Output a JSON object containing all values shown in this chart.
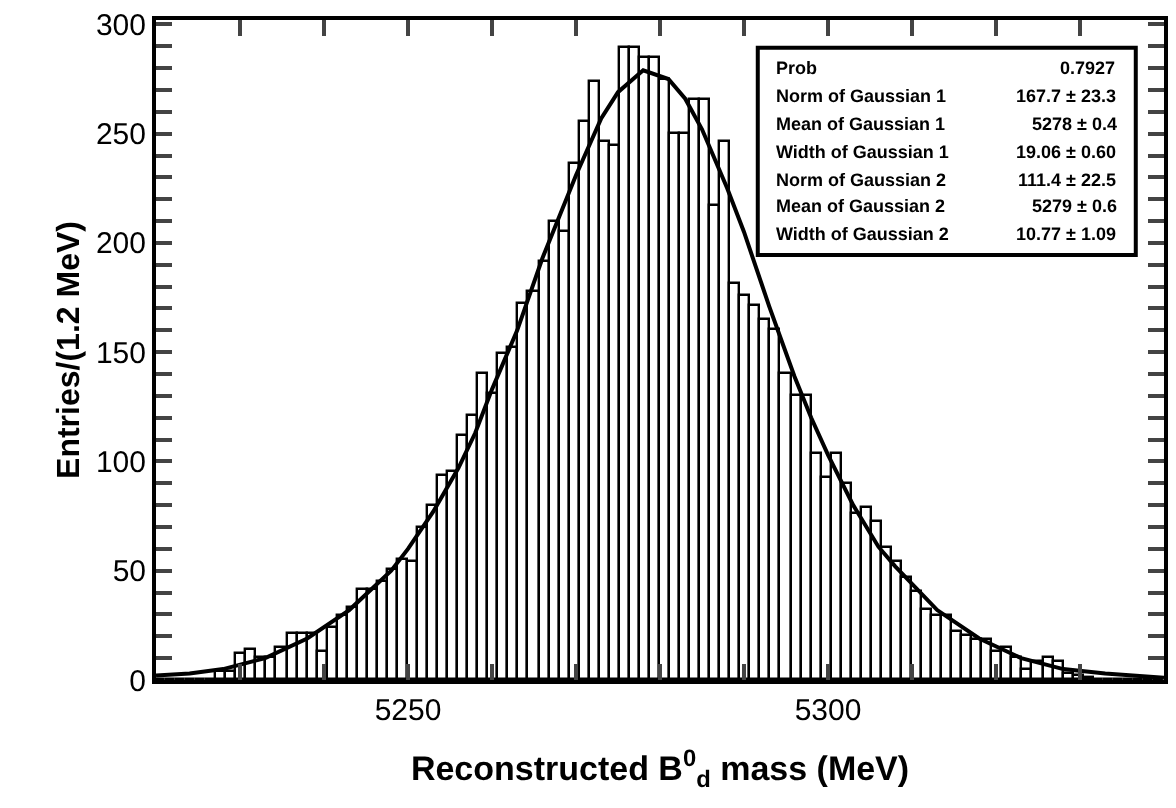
{
  "chart_data": {
    "type": "histogram",
    "xlabel": "Reconstructed B$^{0}$$_{d}$ mass (MeV)",
    "ylabel": "Entries/(1.2 MeV)",
    "bins": [
      5220,
      5221.2,
      5222.4,
      5223.6,
      5224.8,
      5226,
      5227.2,
      5228.4,
      5229.6,
      5230.8,
      5232,
      5233.2,
      5234.4,
      5235.6,
      5236.8,
      5238,
      5239.2,
      5240.4,
      5241.6,
      5242.8,
      5244,
      5245.2,
      5246.4,
      5247.6,
      5248.8,
      5250,
      5251.2,
      5252.4,
      5253.6,
      5254.8,
      5256,
      5257.2,
      5258.4,
      5259.6,
      5260.8,
      5262,
      5263.2,
      5264.4,
      5265.6,
      5266.8,
      5268,
      5269.2,
      5270.4,
      5271.6,
      5272.8,
      5274,
      5275.2,
      5276.4,
      5277.6,
      5278.8,
      5280,
      5281.2,
      5282.4,
      5283.6,
      5284.8,
      5286,
      5287.2,
      5288.4,
      5289.6,
      5290.8,
      5292,
      5293.2,
      5294.4,
      5295.6,
      5296.8,
      5298,
      5299.2,
      5300.4,
      5301.6,
      5302.8,
      5304,
      5305.2,
      5306.4,
      5307.6,
      5308.8,
      5310,
      5311.2,
      5312.4,
      5313.6,
      5314.8,
      5316,
      5317.2,
      5318.4,
      5319.6,
      5320.8,
      5322,
      5323.2,
      5324.4,
      5325.6,
      5326.8,
      5328,
      5329.2,
      5330.4,
      5331.6,
      5332.8,
      5334,
      5335.2,
      5336.4,
      5337.6,
      5338.8,
      5340
    ],
    "values": [
      0,
      0,
      0,
      0,
      0,
      0,
      4,
      4,
      12,
      14,
      10,
      10,
      15,
      21,
      21,
      21,
      13,
      24,
      29,
      33,
      41,
      41,
      45,
      50,
      55,
      54,
      70,
      80,
      93,
      95,
      112,
      121,
      140,
      131,
      149,
      152,
      172,
      178,
      191,
      210,
      205,
      236,
      255,
      274,
      246,
      244,
      289,
      289,
      285,
      285,
      275,
      250,
      250,
      265,
      265,
      217,
      246,
      181,
      176,
      171,
      165,
      160,
      140,
      130,
      130,
      103,
      92,
      103,
      90,
      76,
      79,
      72,
      60,
      54,
      47,
      40,
      32,
      29,
      29,
      22,
      20,
      18,
      18,
      13,
      15,
      10,
      5,
      8,
      10,
      8,
      3,
      2,
      1,
      0,
      0,
      0,
      0,
      0,
      0,
      0
    ],
    "color": "#000000",
    "series": [
      {
        "type": "line",
        "color": "#000000",
        "x": [
          5220,
          5224,
          5228,
          5233,
          5238,
          5243,
          5248,
          5250,
          5253,
          5256,
          5258,
          5260,
          5263,
          5266,
          5268,
          5270,
          5273,
          5275,
          5278,
          5281,
          5283,
          5285,
          5288,
          5290,
          5293,
          5296,
          5298,
          5300,
          5303,
          5306,
          5308,
          5313,
          5318,
          5323,
          5328,
          5333,
          5340
        ],
        "values": [
          2,
          3,
          5,
          10,
          19,
          32,
          50,
          60,
          77,
          97,
          113,
          133,
          160,
          193,
          212,
          231,
          257,
          269,
          279,
          275,
          266,
          252,
          225,
          205,
          171,
          139,
          120,
          103,
          80,
          61,
          52,
          32,
          19,
          10,
          5,
          3,
          1
        ]
      }
    ],
    "xlim": [
      5220,
      5340
    ],
    "xticks": [
      {
        "value": 5230,
        "label": null
      },
      {
        "value": 5240,
        "label": null
      },
      5250,
      {
        "value": 5260,
        "label": null
      },
      {
        "value": 5270,
        "label": null
      },
      {
        "value": 5280,
        "label": null
      },
      {
        "value": 5290,
        "label": null
      },
      5300,
      {
        "value": 5310,
        "label": null
      },
      {
        "value": 5320,
        "label": null
      },
      {
        "value": 5330,
        "label": null
      }
    ],
    "ylim": [
      0,
      302
    ],
    "yticks": [
      0,
      {
        "value": 10,
        "label": null
      },
      {
        "value": 20,
        "label": null
      },
      {
        "value": 30,
        "label": null
      },
      {
        "value": 40,
        "label": null
      },
      50,
      {
        "value": 60,
        "label": null
      },
      {
        "value": 70,
        "label": null
      },
      {
        "value": 80,
        "label": null
      },
      {
        "value": 90,
        "label": null
      },
      100,
      {
        "value": 110,
        "label": null
      },
      {
        "value": 120,
        "label": null
      },
      {
        "value": 130,
        "label": null
      },
      {
        "value": 140,
        "label": null
      },
      150,
      {
        "value": 160,
        "label": null
      },
      {
        "value": 170,
        "label": null
      },
      {
        "value": 180,
        "label": null
      },
      {
        "value": 190,
        "label": null
      },
      200,
      {
        "value": 210,
        "label": null
      },
      {
        "value": 220,
        "label": null
      },
      {
        "value": 230,
        "label": null
      },
      {
        "value": 240,
        "label": null
      },
      250,
      {
        "value": 260,
        "label": null
      },
      {
        "value": 270,
        "label": null
      },
      {
        "value": 280,
        "label": null
      },
      {
        "value": 290,
        "label": null
      },
      300
    ],
    "annotations": [
      "Prob",
      "0.7927",
      "Norm of Gaussian 1",
      "167.7 ± 23.3",
      "Mean of Gaussian 1",
      "5278 ± 0.4",
      "Width of Gaussian 1",
      "19.06 ± 0.60",
      "Norm of Gaussian 2",
      "111.4 ± 22.5",
      "Mean of Gaussian 2",
      "5279 ± 0.6",
      "Width of Gaussian 2",
      "10.77 ± 1.09"
    ]
  }
}
